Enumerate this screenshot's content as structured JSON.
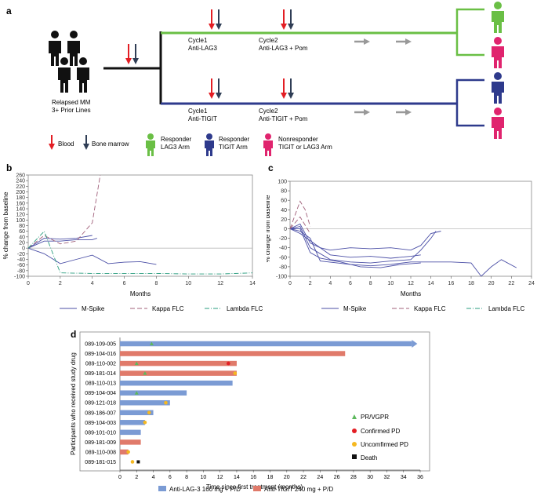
{
  "panel_labels": {
    "a": "a",
    "b": "b",
    "c": "c",
    "d": "d"
  },
  "colors": {
    "lag3_green": "#6abf45",
    "tigit_navy": "#2e3a8c",
    "nonresponder_pink": "#e0246e",
    "blood_red": "#e31e24",
    "marrow_navy": "#2f3d55",
    "gray_arrow": "#999999",
    "bar_blue": "#7b9bd4",
    "bar_red": "#e07a6a",
    "pr_green": "#5cb85c",
    "confirmed_pd_red": "#e31e24",
    "unconfirmed_pd_yellow": "#f5b820",
    "death_black": "#111111",
    "mspike_line": "#4b4fa6",
    "kappa_line": "#a0607a",
    "lambda_line": "#2a9d7f"
  },
  "panel_a": {
    "patients_label_1": "Relapsed MM",
    "patients_label_2": "3+ Prior Lines",
    "lag3_cycle1_title": "Cycle1",
    "lag3_cycle1_drug": "Anti-LAG3",
    "lag3_cycle2_title": "Cycle2",
    "lag3_cycle2_drug": "Anti-LAG3 + Pom",
    "tigit_cycle1_title": "Cycle1",
    "tigit_cycle1_drug": "Anti-TIGIT",
    "tigit_cycle2_title": "Cycle2",
    "tigit_cycle2_drug": "Anti-TIGIT + Pom",
    "legend_blood": "Blood",
    "legend_marrow": "Bone marrow",
    "legend_resp_lag3_1": "Responder",
    "legend_resp_lag3_2": "LAG3 Arm",
    "legend_resp_tigit_1": "Responder",
    "legend_resp_tigit_2": "TIGIT Arm",
    "legend_nonresp_1": "Nonresponder",
    "legend_nonresp_2": "TIGIT or LAG3 Arm"
  },
  "chart_data": [
    {
      "id": "b",
      "type": "line",
      "ylabel": "% change from baseline",
      "xlabel": "Months",
      "xlim": [
        0,
        14
      ],
      "ylim": [
        -100,
        260
      ],
      "xticks": [
        0,
        2,
        4,
        6,
        8,
        10,
        12,
        14
      ],
      "yticks": [
        260,
        240,
        220,
        200,
        180,
        160,
        140,
        120,
        100,
        80,
        60,
        40,
        20,
        0,
        -20,
        -40,
        -60,
        -80,
        -100
      ],
      "legend": [
        "M-Spike",
        "Kappa FLC",
        "Lambda FLC"
      ],
      "series": [
        {
          "name": "M-Spike",
          "points": [
            [
              0,
              0
            ],
            [
              1,
              35
            ],
            [
              2,
              32
            ],
            [
              3,
              35
            ],
            [
              4,
              45
            ]
          ]
        },
        {
          "name": "M-Spike",
          "points": [
            [
              0,
              0
            ],
            [
              1,
              25
            ],
            [
              2,
              25
            ],
            [
              3,
              30
            ],
            [
              4,
              30
            ],
            [
              4.3,
              35
            ]
          ]
        },
        {
          "name": "M-Spike",
          "points": [
            [
              0,
              0
            ],
            [
              1,
              -20
            ],
            [
              2,
              -55
            ],
            [
              3,
              -40
            ],
            [
              4,
              -25
            ],
            [
              5,
              -55
            ],
            [
              6,
              -50
            ],
            [
              7,
              -48
            ],
            [
              8,
              -58
            ]
          ]
        },
        {
          "name": "Kappa FLC",
          "points": [
            [
              0,
              0
            ],
            [
              1,
              45
            ],
            [
              2,
              15
            ],
            [
              3,
              25
            ],
            [
              4,
              90
            ],
            [
              4.5,
              260
            ]
          ]
        },
        {
          "name": "Lambda FLC",
          "points": [
            [
              0,
              0
            ],
            [
              1,
              60
            ],
            [
              2,
              -88
            ],
            [
              4,
              -90
            ],
            [
              6,
              -90
            ],
            [
              8,
              -90
            ],
            [
              10,
              -92
            ],
            [
              12,
              -92
            ],
            [
              14,
              -88
            ]
          ]
        }
      ]
    },
    {
      "id": "c",
      "type": "line",
      "ylabel": "% change from baseline",
      "xlabel": "Months",
      "xlim": [
        0,
        24
      ],
      "ylim": [
        -100,
        100
      ],
      "xticks": [
        0,
        2,
        4,
        6,
        8,
        10,
        12,
        14,
        16,
        18,
        20,
        22,
        24
      ],
      "yticks": [
        100,
        80,
        60,
        40,
        20,
        0,
        -20,
        -40,
        -60,
        -80,
        -100
      ],
      "legend": [
        "M-Spike",
        "Kappa FLC",
        "Lambda FLC"
      ],
      "series": [
        {
          "name": "M-Spike",
          "points": [
            [
              0,
              0
            ],
            [
              1,
              10
            ],
            [
              2,
              -30
            ],
            [
              3,
              -40
            ],
            [
              4,
              -45
            ],
            [
              6,
              -40
            ],
            [
              8,
              -42
            ],
            [
              10,
              -40
            ],
            [
              12,
              -45
            ],
            [
              13,
              -35
            ],
            [
              14,
              -10
            ],
            [
              15,
              -5
            ]
          ]
        },
        {
          "name": "M-Spike",
          "points": [
            [
              0,
              0
            ],
            [
              1,
              5
            ],
            [
              2,
              -40
            ],
            [
              4,
              -65
            ],
            [
              6,
              -70
            ],
            [
              8,
              -72
            ],
            [
              10,
              -68
            ],
            [
              12,
              -65
            ],
            [
              13,
              -45
            ],
            [
              14,
              -20
            ],
            [
              14.5,
              -5
            ]
          ]
        },
        {
          "name": "M-Spike",
          "points": [
            [
              0,
              0
            ],
            [
              1,
              -10
            ],
            [
              2,
              -25
            ],
            [
              4,
              -55
            ],
            [
              6,
              -60
            ],
            [
              8,
              -58
            ],
            [
              10,
              -62
            ],
            [
              12,
              -58
            ],
            [
              13,
              -55
            ]
          ]
        },
        {
          "name": "M-Spike",
          "points": [
            [
              0,
              0
            ],
            [
              1,
              -5
            ],
            [
              2,
              -20
            ],
            [
              3,
              -68
            ],
            [
              6,
              -75
            ],
            [
              8,
              -78
            ],
            [
              10,
              -75
            ],
            [
              12,
              -70
            ],
            [
              14,
              -70
            ],
            [
              16,
              -70
            ],
            [
              18,
              -72
            ],
            [
              19,
              -100
            ],
            [
              20,
              -80
            ],
            [
              21,
              -65
            ],
            [
              22.5,
              -82
            ]
          ]
        },
        {
          "name": "M-Spike",
          "points": [
            [
              0,
              0
            ],
            [
              1,
              0
            ],
            [
              2,
              -50
            ],
            [
              3,
              -62
            ],
            [
              5,
              -70
            ],
            [
              7,
              -80
            ],
            [
              9,
              -82
            ],
            [
              11,
              -75
            ],
            [
              13,
              -72
            ]
          ]
        },
        {
          "name": "Kappa FLC",
          "points": [
            [
              0,
              0
            ],
            [
              1,
              58
            ],
            [
              1.5,
              40
            ],
            [
              2,
              5
            ]
          ]
        },
        {
          "name": "Kappa FLC",
          "points": [
            [
              0,
              0
            ],
            [
              1,
              25
            ],
            [
              2,
              -10
            ]
          ]
        }
      ]
    },
    {
      "id": "d",
      "type": "bar",
      "orientation": "horizontal",
      "ylabel": "Participants who received study drug",
      "xlabel": "Time since first treatment (months)",
      "xlim": [
        0,
        36
      ],
      "xticks": [
        0,
        2,
        4,
        6,
        8,
        10,
        12,
        14,
        16,
        18,
        20,
        22,
        24,
        26,
        28,
        30,
        32,
        34,
        36
      ],
      "categories": [
        "089-109-005",
        "089-104-016",
        "089-110-002",
        "089-181-014",
        "089-110-013",
        "089-104-004",
        "089-121-018",
        "089-186-007",
        "089-104-003",
        "089-101-010",
        "089-181-009",
        "089-110-008",
        "089-181-015"
      ],
      "values": [
        35,
        27,
        14,
        14,
        13.5,
        8,
        6,
        4,
        3,
        2.5,
        2.5,
        1,
        0
      ],
      "arms": [
        "LAG3",
        "TIGIT",
        "TIGIT",
        "TIGIT",
        "LAG3",
        "LAG3",
        "LAG3",
        "LAG3",
        "LAG3",
        "LAG3",
        "TIGIT",
        "TIGIT",
        "LAG3"
      ],
      "ongoing": [
        true,
        false,
        false,
        false,
        false,
        false,
        false,
        false,
        false,
        false,
        false,
        false,
        false
      ],
      "pr_vgpr": [
        3.8,
        null,
        2,
        3,
        null,
        2,
        null,
        null,
        null,
        null,
        null,
        null,
        null
      ],
      "confirmed_pd": [
        null,
        null,
        13,
        null,
        null,
        null,
        null,
        null,
        null,
        null,
        null,
        null,
        null
      ],
      "unconfirmed_pd": [
        null,
        null,
        null,
        13.8,
        null,
        null,
        5.5,
        3.5,
        3,
        null,
        null,
        1,
        1.5
      ],
      "death": [
        null,
        null,
        null,
        null,
        null,
        null,
        null,
        null,
        null,
        null,
        null,
        null,
        2.2
      ],
      "legend": {
        "pr_vgpr": "PR/VGPR",
        "confirmed_pd": "Confirmed PD",
        "unconfirmed_pd": "Uncomfirmed PD",
        "death": "Death",
        "lag3": "Anti-LAG-3 160 mg + P/D",
        "tigit": "Anti-TIGIT 240 mg + P/D"
      }
    }
  ]
}
